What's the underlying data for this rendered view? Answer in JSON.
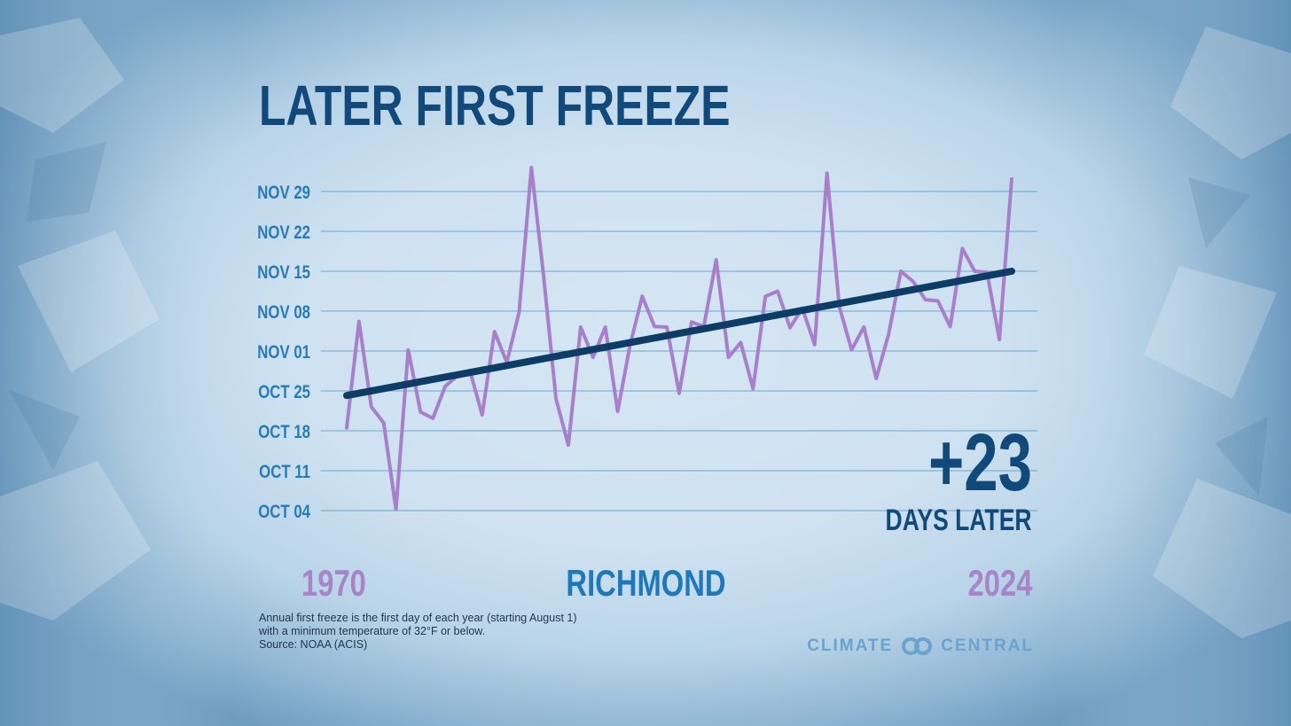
{
  "title": "LATER FIRST FREEZE",
  "location": "RICHMOND",
  "start_year": "1970",
  "end_year": "2024",
  "change": {
    "value": "+23",
    "label": "DAYS LATER"
  },
  "footnote": [
    "Annual first freeze is the first day of each year (starting August 1)",
    "with a minimum temperature of 32°F or below.",
    "Source: NOAA (ACIS)"
  ],
  "brand": {
    "left": "CLIMATE",
    "right": "CENTRAL",
    "logo_icon": "linked-rings-icon"
  },
  "colors": {
    "title": "#10497a",
    "tick_labels": "#2a7bb5",
    "gridlines": "#4a90c4",
    "series_line": "#a87fcb",
    "trend_line": "#0d3d66",
    "years": "#a884c8",
    "location": "#1f79b8"
  },
  "chart_data": {
    "type": "line",
    "y_axis": {
      "ticks": [
        "OCT 04",
        "OCT 11",
        "OCT 18",
        "OCT 25",
        "NOV 01",
        "NOV 08",
        "NOV 15",
        "NOV 22",
        "NOV 29"
      ],
      "tick_values": [
        4,
        11,
        18,
        25,
        32,
        39,
        46,
        53,
        60
      ],
      "value_note": "days after September 30"
    },
    "x": [
      1970,
      1971,
      1972,
      1973,
      1974,
      1975,
      1976,
      1977,
      1978,
      1979,
      1980,
      1981,
      1982,
      1983,
      1984,
      1985,
      1986,
      1987,
      1988,
      1989,
      1990,
      1991,
      1992,
      1993,
      1994,
      1995,
      1996,
      1997,
      1998,
      1999,
      2000,
      2001,
      2002,
      2003,
      2004,
      2005,
      2006,
      2007,
      2008,
      2009,
      2010,
      2011,
      2012,
      2013,
      2014,
      2015,
      2016,
      2017,
      2018,
      2019,
      2020,
      2021,
      2022,
      2023,
      2024
    ],
    "series": [
      {
        "name": "",
        "values": [
          18.5,
          37.2,
          22.2,
          19.4,
          4.2,
          32.2,
          21.3,
          20.2,
          25.8,
          27.7,
          28.6,
          20.8,
          35.4,
          30.0,
          38.8,
          64.2,
          45.0,
          23.6,
          15.5,
          36.2,
          30.9,
          36.2,
          21.4,
          32.9,
          41.6,
          36.3,
          36.2,
          24.6,
          37.1,
          36.3,
          48.0,
          30.9,
          33.5,
          25.4,
          41.6,
          42.5,
          36.1,
          39.5,
          33.1,
          63.2,
          39.8,
          32.2,
          36.2,
          27.2,
          34.9,
          46.0,
          44.2,
          41.0,
          40.8,
          36.3,
          50.0,
          46.0,
          45.8,
          34.0,
          62.2
        ]
      }
    ],
    "trend": {
      "name": "",
      "start": 24.2,
      "end": 46.0
    },
    "grid": true,
    "legend": "none"
  }
}
